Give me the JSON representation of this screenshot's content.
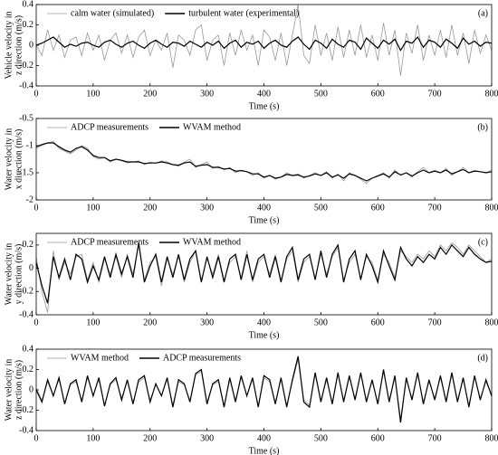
{
  "chart_data": [
    {
      "type": "line",
      "panel_label": "(a)",
      "xlabel": "Time (s)",
      "ylabel": [
        "Vehicle velocity in",
        "z direction (m/s)"
      ],
      "xlim": [
        0,
        800
      ],
      "xticks": [
        0,
        100,
        200,
        300,
        400,
        500,
        600,
        700,
        800
      ],
      "ylim": [
        -0.4,
        0.4
      ],
      "yticks": [
        -0.4,
        -0.2,
        0,
        0.2,
        0.4
      ],
      "legend": "upper left",
      "x": [
        0,
        10,
        20,
        30,
        40,
        50,
        60,
        70,
        80,
        90,
        100,
        110,
        120,
        130,
        140,
        150,
        160,
        170,
        180,
        190,
        200,
        210,
        220,
        230,
        240,
        250,
        260,
        270,
        280,
        290,
        300,
        310,
        320,
        330,
        340,
        350,
        360,
        370,
        380,
        390,
        400,
        410,
        420,
        430,
        440,
        450,
        460,
        470,
        480,
        490,
        500,
        510,
        520,
        530,
        540,
        550,
        560,
        570,
        580,
        590,
        600,
        610,
        620,
        630,
        640,
        650,
        660,
        670,
        680,
        690,
        700,
        710,
        720,
        730,
        740,
        750,
        760,
        770,
        780,
        790,
        800
      ],
      "series": [
        {
          "name": "calm water (simulated)",
          "color": "#9a9a9a",
          "values": [
            0,
            -0.1,
            0.15,
            -0.05,
            0.1,
            -0.12,
            0.05,
            0.08,
            -0.1,
            0.12,
            -0.05,
            0.1,
            -0.15,
            0.05,
            0.12,
            -0.08,
            0.1,
            -0.12,
            0.08,
            0.15,
            -0.1,
            0.05,
            -0.05,
            0.12,
            -0.22,
            0.1,
            0.05,
            -0.1,
            0.15,
            0.2,
            -0.15,
            0.05,
            0.1,
            -0.2,
            0.12,
            -0.1,
            0.15,
            -0.05,
            0.1,
            -0.2,
            0.15,
            0.08,
            -0.15,
            0.12,
            -0.2,
            0.1,
            0.4,
            -0.1,
            -0.18,
            0.2,
            -0.1,
            0.12,
            -0.15,
            0.18,
            -0.12,
            0.15,
            -0.1,
            0.2,
            -0.12,
            0.1,
            -0.15,
            0.22,
            -0.1,
            0.15,
            -0.3,
            0.12,
            -0.08,
            0.2,
            -0.15,
            0.1,
            -0.1,
            0.15,
            -0.12,
            0.2,
            -0.1,
            0.12,
            -0.18,
            0.15,
            -0.08,
            0.1,
            -0.05
          ]
        },
        {
          "name": "turbulent water (experimental)",
          "color": "#000000",
          "values": [
            0,
            0.02,
            0.05,
            0.08,
            0.03,
            -0.02,
            0.01,
            -0.01,
            0.02,
            0.03,
            0,
            -0.02,
            0.03,
            0.05,
            0.01,
            -0.02,
            0.02,
            0.04,
            0,
            -0.03,
            0.02,
            0.05,
            0.01,
            -0.02,
            0.03,
            0.02,
            -0.01,
            0.04,
            0.01,
            -0.02,
            0.03,
            0,
            0.04,
            -0.03,
            0.02,
            0.05,
            -0.02,
            0.03,
            0.01,
            0.04,
            -0.03,
            0.02,
            0.05,
            0,
            -0.02,
            0.04,
            0.08,
            0.01,
            -0.04,
            0.05,
            0.02,
            -0.03,
            0.06,
            0.01,
            -0.02,
            0.05,
            0.03,
            -0.04,
            0.07,
            0.02,
            -0.03,
            0.05,
            0.01,
            0.06,
            -0.05,
            0.04,
            0.02,
            0.08,
            -0.02,
            0.05,
            0.03,
            -0.02,
            0.06,
            0.02,
            -0.03,
            0.07,
            0.01,
            0.04,
            -0.01,
            0.03,
            0.02
          ]
        }
      ]
    },
    {
      "type": "line",
      "panel_label": "(b)",
      "xlabel": "Time (s)",
      "ylabel": [
        "Water velocity in",
        "x direction (m/s)"
      ],
      "xlim": [
        0,
        800
      ],
      "xticks": [
        0,
        100,
        200,
        300,
        400,
        500,
        600,
        700,
        800
      ],
      "ylim": [
        -2,
        -0.5
      ],
      "yticks": [
        -2,
        -1.5,
        -1,
        -0.5
      ],
      "legend": "upper left",
      "x": [
        0,
        10,
        20,
        30,
        40,
        50,
        60,
        70,
        80,
        90,
        100,
        110,
        120,
        130,
        140,
        150,
        160,
        170,
        180,
        190,
        200,
        210,
        220,
        230,
        240,
        250,
        260,
        270,
        280,
        290,
        300,
        310,
        320,
        330,
        340,
        350,
        360,
        370,
        380,
        390,
        400,
        410,
        420,
        430,
        440,
        450,
        460,
        470,
        480,
        490,
        500,
        510,
        520,
        530,
        540,
        550,
        560,
        570,
        580,
        590,
        600,
        610,
        620,
        630,
        640,
        650,
        660,
        670,
        680,
        690,
        700,
        710,
        720,
        730,
        740,
        750,
        760,
        770,
        780,
        790,
        800
      ],
      "series": [
        {
          "name": "ADCP measurements",
          "color": "#9a9a9a",
          "values": [
            -1.05,
            -1.0,
            -0.95,
            -0.92,
            -1.05,
            -1.1,
            -1.15,
            -1.08,
            -1.0,
            -1.05,
            -1.2,
            -1.25,
            -1.22,
            -1.3,
            -1.25,
            -1.28,
            -1.32,
            -1.3,
            -1.28,
            -1.35,
            -1.3,
            -1.33,
            -1.28,
            -1.3,
            -1.35,
            -1.38,
            -1.3,
            -1.25,
            -1.4,
            -1.35,
            -1.3,
            -1.42,
            -1.38,
            -1.45,
            -1.4,
            -1.5,
            -1.45,
            -1.48,
            -1.55,
            -1.5,
            -1.6,
            -1.55,
            -1.62,
            -1.58,
            -1.5,
            -1.55,
            -1.52,
            -1.6,
            -1.55,
            -1.5,
            -1.55,
            -1.48,
            -1.6,
            -1.52,
            -1.65,
            -1.5,
            -1.55,
            -1.62,
            -1.7,
            -1.6,
            -1.55,
            -1.5,
            -1.6,
            -1.45,
            -1.55,
            -1.5,
            -1.58,
            -1.48,
            -1.4,
            -1.5,
            -1.45,
            -1.5,
            -1.42,
            -1.55,
            -1.48,
            -1.4,
            -1.5,
            -1.45,
            -1.48,
            -1.5,
            -1.45
          ]
        },
        {
          "name": "WVAM method",
          "color": "#000000",
          "values": [
            -1.02,
            -0.98,
            -0.95,
            -0.95,
            -1.02,
            -1.08,
            -1.12,
            -1.05,
            -1.02,
            -1.08,
            -1.18,
            -1.22,
            -1.22,
            -1.28,
            -1.25,
            -1.27,
            -1.3,
            -1.3,
            -1.3,
            -1.33,
            -1.32,
            -1.32,
            -1.3,
            -1.32,
            -1.35,
            -1.36,
            -1.32,
            -1.3,
            -1.38,
            -1.36,
            -1.35,
            -1.4,
            -1.4,
            -1.43,
            -1.42,
            -1.47,
            -1.46,
            -1.48,
            -1.52,
            -1.52,
            -1.58,
            -1.55,
            -1.6,
            -1.58,
            -1.53,
            -1.55,
            -1.54,
            -1.58,
            -1.56,
            -1.52,
            -1.55,
            -1.5,
            -1.58,
            -1.54,
            -1.6,
            -1.52,
            -1.55,
            -1.6,
            -1.65,
            -1.6,
            -1.56,
            -1.52,
            -1.58,
            -1.48,
            -1.54,
            -1.5,
            -1.56,
            -1.5,
            -1.45,
            -1.5,
            -1.47,
            -1.5,
            -1.45,
            -1.52,
            -1.48,
            -1.44,
            -1.5,
            -1.47,
            -1.48,
            -1.5,
            -1.48
          ]
        }
      ]
    },
    {
      "type": "line",
      "panel_label": "(c)",
      "xlabel": "Time (s)",
      "ylabel": [
        "Water velocity in",
        "y direction (m/s)"
      ],
      "xlim": [
        0,
        800
      ],
      "xticks": [
        0,
        100,
        200,
        300,
        400,
        500,
        600,
        700,
        800
      ],
      "ylim": [
        -0.4,
        0.3
      ],
      "yticks": [
        -0.4,
        -0.2,
        0,
        0.2
      ],
      "legend": "upper left",
      "x": [
        0,
        10,
        20,
        30,
        40,
        50,
        60,
        70,
        80,
        90,
        100,
        110,
        120,
        130,
        140,
        150,
        160,
        170,
        180,
        190,
        200,
        210,
        220,
        230,
        240,
        250,
        260,
        270,
        280,
        290,
        300,
        310,
        320,
        330,
        340,
        350,
        360,
        370,
        380,
        390,
        400,
        410,
        420,
        430,
        440,
        450,
        460,
        470,
        480,
        490,
        500,
        510,
        520,
        530,
        540,
        550,
        560,
        570,
        580,
        590,
        600,
        610,
        620,
        630,
        640,
        650,
        660,
        670,
        680,
        690,
        700,
        710,
        720,
        730,
        740,
        750,
        760,
        770,
        780,
        790,
        800
      ],
      "series": [
        {
          "name": "ADCP measurements",
          "color": "#9a9a9a",
          "values": [
            0.1,
            -0.2,
            -0.38,
            0.15,
            -0.1,
            0.05,
            -0.05,
            0.1,
            0.12,
            -0.1,
            0.05,
            -0.12,
            0.08,
            -0.05,
            0.1,
            -0.08,
            0.12,
            -0.05,
            0.2,
            -0.1,
            0.05,
            0.1,
            -0.15,
            0.08,
            -0.05,
            0.1,
            -0.12,
            0.05,
            0.15,
            -0.1,
            0.08,
            -0.05,
            0.12,
            -0.1,
            0.05,
            0.1,
            -0.08,
            0.15,
            -0.12,
            0.05,
            0.1,
            -0.05,
            0.12,
            -0.1,
            0.08,
            0.15,
            -0.12,
            0.05,
            0.1,
            -0.08,
            0.12,
            -0.05,
            0.1,
            0.18,
            -0.1,
            0.05,
            0.12,
            -0.08,
            0.1,
            0.05,
            -0.1,
            0.12,
            0.05,
            -0.08,
            0.15,
            0.1,
            0.05,
            0.12,
            0.08,
            0.15,
            0.1,
            0.2,
            0.15,
            0.22,
            0.18,
            0.12,
            0.2,
            0.15,
            0.1,
            0.05,
            0.08
          ]
        },
        {
          "name": "WVAM method",
          "color": "#000000",
          "values": [
            0.05,
            -0.15,
            -0.3,
            0.1,
            -0.08,
            0.08,
            -0.1,
            0.12,
            0.08,
            -0.12,
            0.02,
            -0.1,
            0.1,
            -0.08,
            0.12,
            -0.05,
            0.1,
            -0.08,
            0.22,
            -0.12,
            0.02,
            0.12,
            -0.12,
            0.1,
            -0.08,
            0.12,
            -0.1,
            0.08,
            0.15,
            -0.12,
            0.1,
            -0.08,
            0.1,
            -0.12,
            0.08,
            0.12,
            -0.1,
            0.12,
            -0.1,
            0.08,
            0.12,
            -0.08,
            0.1,
            -0.12,
            0.1,
            0.18,
            -0.1,
            0.08,
            0.12,
            -0.1,
            0.15,
            -0.08,
            0.12,
            0.2,
            -0.12,
            0.08,
            0.15,
            -0.1,
            0.12,
            0.02,
            -0.12,
            0.15,
            0.02,
            -0.1,
            0.18,
            0.08,
            0.02,
            0.1,
            0.05,
            0.12,
            0.08,
            0.18,
            0.12,
            0.2,
            0.15,
            0.1,
            0.18,
            0.12,
            0.08,
            0.05,
            0.06
          ]
        }
      ]
    },
    {
      "type": "line",
      "panel_label": "(d)",
      "xlabel": "Time (s)",
      "ylabel": [
        "Water velocity in",
        "z direction (m/s)"
      ],
      "xlim": [
        0,
        800
      ],
      "xticks": [
        0,
        100,
        200,
        300,
        400,
        500,
        600,
        700,
        800
      ],
      "ylim": [
        -0.4,
        0.4
      ],
      "yticks": [
        -0.4,
        -0.2,
        0,
        0.2,
        0.4
      ],
      "legend": "upper left",
      "x": [
        0,
        10,
        20,
        30,
        40,
        50,
        60,
        70,
        80,
        90,
        100,
        110,
        120,
        130,
        140,
        150,
        160,
        170,
        180,
        190,
        200,
        210,
        220,
        230,
        240,
        250,
        260,
        270,
        280,
        290,
        300,
        310,
        320,
        330,
        340,
        350,
        360,
        370,
        380,
        390,
        400,
        410,
        420,
        430,
        440,
        450,
        460,
        470,
        480,
        490,
        500,
        510,
        520,
        530,
        540,
        550,
        560,
        570,
        580,
        590,
        600,
        610,
        620,
        630,
        640,
        650,
        660,
        670,
        680,
        690,
        700,
        710,
        720,
        730,
        740,
        750,
        760,
        770,
        780,
        790,
        800
      ],
      "series": [
        {
          "name": "WVAM method",
          "color": "#9a9a9a",
          "values": [
            0.02,
            -0.1,
            0.08,
            -0.05,
            0.1,
            -0.12,
            0.05,
            0.08,
            -0.1,
            0.12,
            -0.05,
            0.1,
            -0.15,
            0.05,
            0.1,
            -0.08,
            0.08,
            -0.12,
            0.08,
            0.12,
            -0.1,
            0.05,
            -0.05,
            0.1,
            -0.15,
            0.08,
            0.05,
            -0.1,
            0.15,
            0.18,
            -0.12,
            0.05,
            0.08,
            -0.15,
            0.1,
            -0.1,
            0.12,
            -0.05,
            0.1,
            -0.15,
            0.12,
            0.08,
            -0.12,
            0.1,
            -0.15,
            0.08,
            0.3,
            -0.1,
            -0.15,
            0.15,
            -0.1,
            0.1,
            -0.12,
            0.15,
            -0.1,
            0.12,
            -0.08,
            0.15,
            -0.1,
            0.08,
            -0.12,
            0.18,
            -0.1,
            0.12,
            -0.28,
            0.1,
            -0.08,
            0.15,
            -0.12,
            0.08,
            -0.08,
            0.12,
            -0.1,
            0.15,
            -0.1,
            0.1,
            -0.15,
            0.12,
            -0.08,
            0.08,
            -0.05
          ]
        },
        {
          "name": "ADCP measurements",
          "color": "#000000",
          "values": [
            0,
            -0.12,
            0.1,
            -0.06,
            0.12,
            -0.14,
            0.06,
            0.1,
            -0.12,
            0.14,
            -0.06,
            0.12,
            -0.16,
            0.06,
            0.12,
            -0.1,
            0.1,
            -0.14,
            0.1,
            0.14,
            -0.12,
            0.06,
            -0.06,
            0.12,
            -0.17,
            0.1,
            0.06,
            -0.12,
            0.16,
            0.2,
            -0.14,
            0.06,
            0.1,
            -0.17,
            0.12,
            -0.12,
            0.14,
            -0.06,
            0.12,
            -0.17,
            0.14,
            0.1,
            -0.14,
            0.12,
            -0.17,
            0.1,
            0.33,
            -0.12,
            -0.17,
            0.17,
            -0.12,
            0.12,
            -0.14,
            0.17,
            -0.12,
            0.14,
            -0.1,
            0.17,
            -0.12,
            0.1,
            -0.14,
            0.2,
            -0.12,
            0.14,
            -0.32,
            0.12,
            -0.1,
            0.17,
            -0.14,
            0.1,
            -0.1,
            0.14,
            -0.12,
            0.17,
            -0.12,
            0.12,
            -0.17,
            0.14,
            -0.1,
            0.1,
            -0.06
          ]
        }
      ]
    }
  ]
}
